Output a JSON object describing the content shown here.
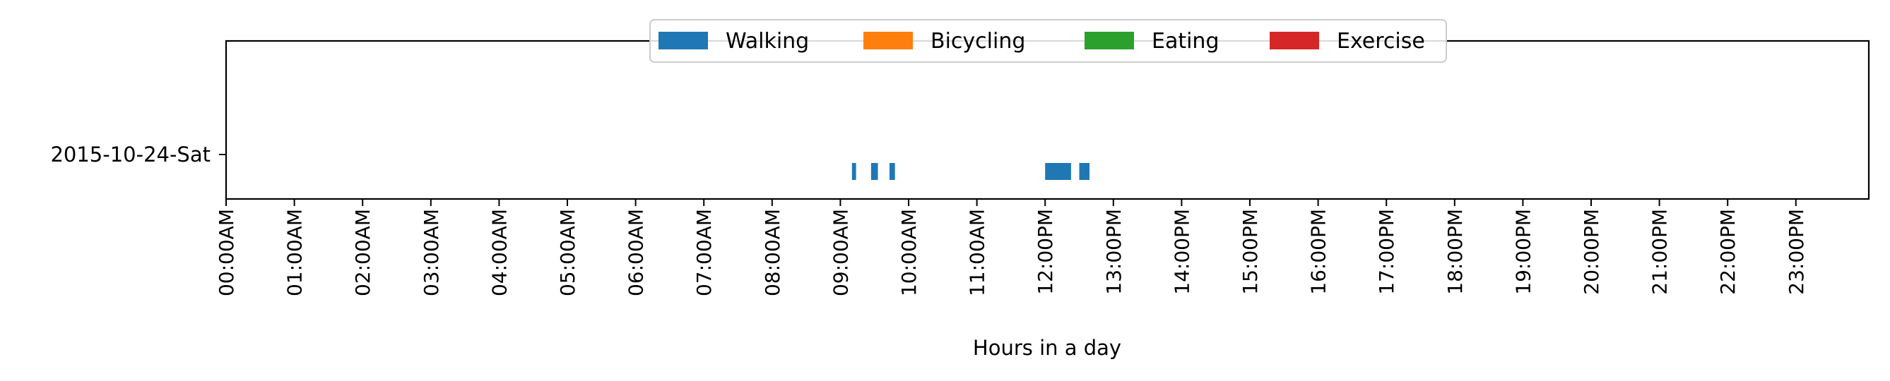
{
  "chart_data": {
    "type": "bar",
    "orientation": "horizontal-timeline",
    "title": "",
    "xlabel": "Hours in a day",
    "ylabel": "",
    "xlim": [
      0,
      24
    ],
    "categories": [
      "2015-10-24-Sat"
    ],
    "x_tick_labels": [
      "00:00AM",
      "01:00AM",
      "02:00AM",
      "03:00AM",
      "04:00AM",
      "05:00AM",
      "06:00AM",
      "07:00AM",
      "08:00AM",
      "09:00AM",
      "10:00AM",
      "11:00AM",
      "12:00PM",
      "13:00PM",
      "14:00PM",
      "15:00PM",
      "16:00PM",
      "17:00PM",
      "18:00PM",
      "19:00PM",
      "20:00PM",
      "21:00PM",
      "22:00PM",
      "23:00PM"
    ],
    "grid": false,
    "legend_placement": "top-center",
    "series": [
      {
        "name": "Walking",
        "color": "#1f77b4",
        "intervals": [
          [
            9.17,
            9.23
          ],
          [
            9.45,
            9.55
          ],
          [
            9.72,
            9.8
          ],
          [
            12.0,
            12.38
          ],
          [
            12.5,
            12.65
          ]
        ]
      },
      {
        "name": "Bicycling",
        "color": "#ff7f0e",
        "intervals": []
      },
      {
        "name": "Eating",
        "color": "#2ca02c",
        "intervals": []
      },
      {
        "name": "Exercise",
        "color": "#d62728",
        "intervals": []
      }
    ]
  }
}
